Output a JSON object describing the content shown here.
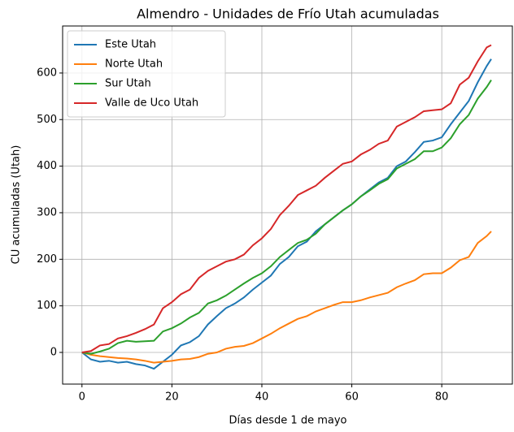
{
  "chart_data": {
    "type": "line",
    "title": "Almendro - Unidades de Frío Utah acumuladas",
    "xlabel": "Días desde 1 de mayo",
    "ylabel": "CU acumuladas (Utah)",
    "x": [
      0,
      2,
      4,
      6,
      8,
      10,
      12,
      14,
      16,
      18,
      20,
      22,
      24,
      26,
      28,
      30,
      32,
      34,
      36,
      38,
      40,
      42,
      44,
      46,
      48,
      50,
      52,
      54,
      56,
      58,
      60,
      62,
      64,
      66,
      68,
      70,
      72,
      74,
      76,
      78,
      80,
      82,
      84,
      86,
      88,
      90,
      91
    ],
    "series": [
      {
        "name": "Este Utah",
        "color": "#1f77b4",
        "values": [
          0,
          -15,
          -20,
          -18,
          -22,
          -20,
          -25,
          -28,
          -35,
          -20,
          -5,
          15,
          22,
          35,
          60,
          78,
          95,
          105,
          118,
          135,
          150,
          165,
          190,
          205,
          228,
          238,
          260,
          275,
          290,
          305,
          318,
          335,
          350,
          365,
          375,
          400,
          410,
          430,
          452,
          455,
          462,
          490,
          515,
          540,
          580,
          615,
          630
        ]
      },
      {
        "name": "Norte Utah",
        "color": "#ff7f0e",
        "values": [
          0,
          -5,
          -8,
          -10,
          -12,
          -13,
          -15,
          -18,
          -22,
          -20,
          -18,
          -15,
          -14,
          -10,
          -3,
          0,
          8,
          12,
          14,
          20,
          30,
          40,
          52,
          62,
          72,
          78,
          88,
          95,
          102,
          108,
          108,
          112,
          118,
          123,
          128,
          140,
          148,
          155,
          168,
          170,
          170,
          182,
          198,
          205,
          235,
          250,
          260
        ]
      },
      {
        "name": "Sur Utah",
        "color": "#2ca02c",
        "values": [
          0,
          -3,
          2,
          8,
          20,
          25,
          23,
          24,
          25,
          45,
          52,
          62,
          75,
          85,
          105,
          112,
          122,
          135,
          148,
          160,
          170,
          185,
          205,
          220,
          235,
          242,
          255,
          275,
          290,
          305,
          318,
          335,
          348,
          362,
          372,
          395,
          405,
          415,
          432,
          432,
          440,
          460,
          490,
          510,
          545,
          570,
          585
        ]
      },
      {
        "name": "Valle de Uco Utah",
        "color": "#d62728",
        "values": [
          0,
          3,
          15,
          18,
          30,
          35,
          42,
          50,
          60,
          95,
          108,
          125,
          135,
          160,
          175,
          185,
          195,
          200,
          210,
          230,
          245,
          265,
          295,
          315,
          338,
          348,
          358,
          375,
          390,
          405,
          410,
          425,
          435,
          448,
          455,
          485,
          495,
          505,
          518,
          520,
          522,
          535,
          575,
          590,
          625,
          655,
          660
        ]
      }
    ],
    "xlim": [
      -4.3,
      95.7
    ],
    "ylim": [
      -68,
      701
    ],
    "xticks": [
      0,
      20,
      40,
      60,
      80
    ],
    "yticks": [
      0,
      100,
      200,
      300,
      400,
      500,
      600
    ],
    "grid": true,
    "legend": "upper left"
  }
}
